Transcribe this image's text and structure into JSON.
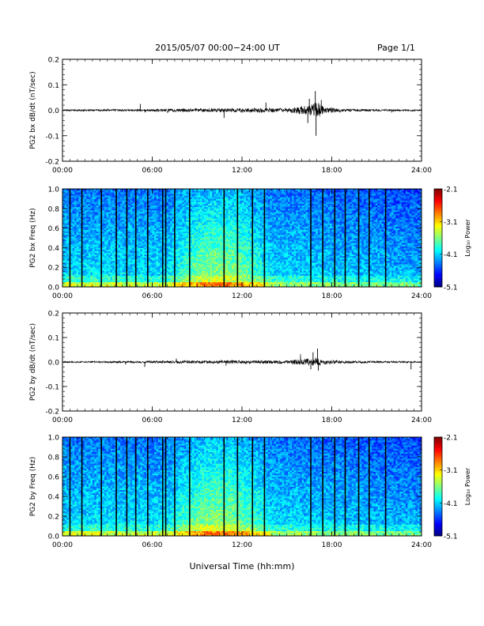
{
  "header": {
    "title": "2015/05/07  00:00−24:00 UT",
    "page": "Page 1/1",
    "xaxis_title": "Universal Time (hh:mm)"
  },
  "colors": {
    "trace": "#000000",
    "axis": "#000000",
    "background": "#ffffff"
  },
  "chart_data": [
    {
      "type": "line",
      "name": "waveform-bx",
      "ylabel": "PG2 bx dB/dt (nT/sec)",
      "xlim": [
        0,
        24
      ],
      "ylim": [
        -0.2,
        0.2
      ],
      "yticks": [
        "-0.2",
        "-0.1",
        "0.0",
        "0.1",
        "0.2"
      ],
      "xticks": [
        "00:00",
        "06:00",
        "12:00",
        "18:00",
        "24:00"
      ],
      "noise": [
        [
          0,
          0.003
        ],
        [
          5,
          0.004
        ],
        [
          7,
          0.006
        ],
        [
          10,
          0.007
        ],
        [
          13,
          0.009
        ],
        [
          15,
          0.008
        ],
        [
          16.5,
          0.02
        ],
        [
          17,
          0.035
        ],
        [
          17.5,
          0.012
        ],
        [
          19,
          0.005
        ],
        [
          24,
          0.003
        ]
      ],
      "spikes": [
        {
          "t": 16.9,
          "v": 0.075
        },
        {
          "t": 16.95,
          "v": -0.1
        },
        {
          "t": 16.5,
          "v": 0.045
        },
        {
          "t": 16.4,
          "v": -0.05
        },
        {
          "t": 17.3,
          "v": 0.04
        },
        {
          "t": 5.2,
          "v": 0.025
        },
        {
          "t": 10.8,
          "v": -0.03
        },
        {
          "t": 13.6,
          "v": 0.03
        }
      ]
    },
    {
      "type": "heatmap",
      "name": "spectrogram-bx",
      "ylabel": "PG2 bx Freq (Hz)",
      "xlim": [
        0,
        24
      ],
      "ylim": [
        0,
        1.0
      ],
      "yticks": [
        "0.0",
        "0.2",
        "0.4",
        "0.6",
        "0.8",
        "1.0"
      ],
      "xticks": [
        "00:00",
        "06:00",
        "12:00",
        "18:00",
        "24:00"
      ],
      "colorbar": {
        "label": "Log₁₀ Power",
        "ticks": [
          "-2.1",
          "-3.1",
          "-4.1",
          "-5.1"
        ],
        "min": -5.1,
        "max": -2.1
      },
      "gaps": [
        0.5,
        1.3,
        2.6,
        3.6,
        4.3,
        4.9,
        5.7,
        6.7,
        6.9,
        7.5,
        8.5,
        10.8,
        11.7,
        12.7,
        13.5,
        16.6,
        17.4,
        18.2,
        18.9,
        19.8,
        20.5,
        21.6
      ]
    },
    {
      "type": "line",
      "name": "waveform-by",
      "ylabel": "PG2 by dB/dt (nT/sec)",
      "xlim": [
        0,
        24
      ],
      "ylim": [
        -0.2,
        0.2
      ],
      "yticks": [
        "-0.2",
        "-0.1",
        "0.0",
        "0.1",
        "0.2"
      ],
      "xticks": [
        "00:00",
        "06:00",
        "12:00",
        "18:00",
        "24:00"
      ],
      "noise": [
        [
          0,
          0.003
        ],
        [
          5,
          0.004
        ],
        [
          7,
          0.005
        ],
        [
          10,
          0.006
        ],
        [
          13,
          0.007
        ],
        [
          15,
          0.007
        ],
        [
          16.5,
          0.015
        ],
        [
          17,
          0.02
        ],
        [
          17.5,
          0.01
        ],
        [
          19,
          0.005
        ],
        [
          24,
          0.003
        ]
      ],
      "spikes": [
        {
          "t": 16.75,
          "v": 0.04
        },
        {
          "t": 17.05,
          "v": 0.055
        },
        {
          "t": 16.6,
          "v": -0.03
        },
        {
          "t": 17.1,
          "v": -0.035
        },
        {
          "t": 5.5,
          "v": -0.02
        },
        {
          "t": 23.3,
          "v": -0.03
        }
      ]
    },
    {
      "type": "heatmap",
      "name": "spectrogram-by",
      "ylabel": "PG2 by Freq (Hz)",
      "xlim": [
        0,
        24
      ],
      "ylim": [
        0,
        1.0
      ],
      "yticks": [
        "0.0",
        "0.2",
        "0.4",
        "0.6",
        "0.8",
        "1.0"
      ],
      "xticks": [
        "00:00",
        "06:00",
        "12:00",
        "18:00",
        "24:00"
      ],
      "colorbar": {
        "label": "Log₁₀ Power",
        "ticks": [
          "-2.1",
          "-3.1",
          "-4.1",
          "-5.1"
        ],
        "min": -5.1,
        "max": -2.1
      },
      "gaps": [
        0.5,
        1.3,
        2.6,
        3.6,
        4.3,
        4.9,
        5.7,
        6.7,
        6.9,
        7.5,
        8.5,
        10.8,
        11.7,
        12.7,
        13.5,
        16.6,
        17.4,
        18.2,
        18.9,
        19.8,
        20.5,
        21.6
      ]
    }
  ]
}
